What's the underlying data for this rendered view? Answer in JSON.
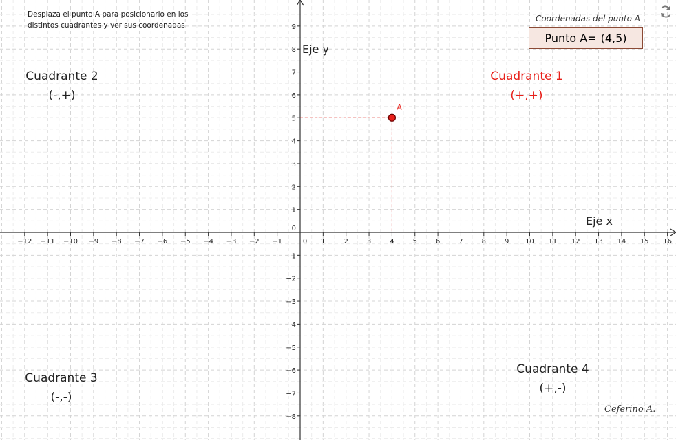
{
  "instructions": "Desplaza el punto A para posicionarlo en los distintos cuadrantes y ver sus coordenadas",
  "coord_title": "Coordenadas del punto A",
  "coord_label": "Punto A=",
  "coord_value": "(4,5)",
  "point": {
    "label": "A",
    "x": 4,
    "y": 5,
    "color": "#e8201a"
  },
  "axis_labels": {
    "x": "Eje x",
    "y": "Eje y"
  },
  "quadrants": [
    {
      "name": "Cuadrante 1",
      "signs": "(+,+)",
      "color": "#e8201a"
    },
    {
      "name": "Cuadrante 2",
      "signs": "(-,+)",
      "color": "#222222"
    },
    {
      "name": "Cuadrante 3",
      "signs": "(-,-)",
      "color": "#222222"
    },
    {
      "name": "Cuadrante 4",
      "signs": "(+,-)",
      "color": "#222222"
    }
  ],
  "author": "Ceferino A.",
  "icons": {
    "refresh": "refresh-icon"
  },
  "graph": {
    "xlim": [
      -12,
      16
    ],
    "ylim": [
      -8,
      9
    ],
    "grid": true,
    "grid_style": "dashed"
  }
}
